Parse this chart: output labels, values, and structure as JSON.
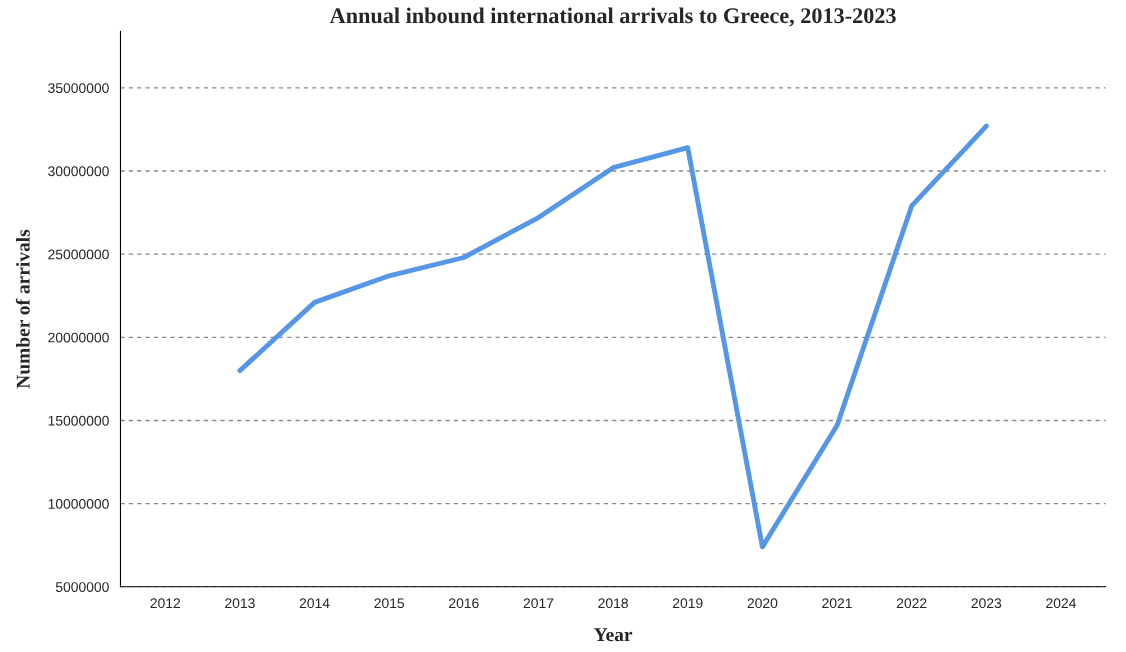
{
  "chart_data": {
    "type": "line",
    "title": "Annual inbound international arrivals to Greece, 2013-2023",
    "xlabel": "Year",
    "ylabel": "Number of arrivals",
    "categories": [
      "2012",
      "2013",
      "2014",
      "2015",
      "2016",
      "2017",
      "2018",
      "2019",
      "2020",
      "2021",
      "2022",
      "2023",
      "2024"
    ],
    "series": [
      {
        "color": "#5596e6",
        "values": [
          null,
          18000000,
          22100000,
          23700000,
          24800000,
          27200000,
          30200000,
          31400000,
          7400000,
          14700000,
          27900000,
          32700000,
          null
        ]
      }
    ],
    "ylim": [
      5000000,
      38400000
    ],
    "yticks": [
      5000000,
      10000000,
      15000000,
      20000000,
      25000000,
      30000000,
      35000000
    ],
    "grid": "y",
    "marker": "none",
    "line_style": "solid"
  }
}
